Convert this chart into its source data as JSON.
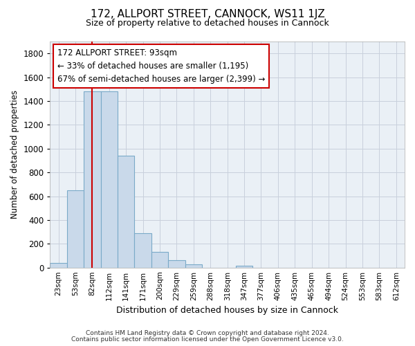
{
  "title1": "172, ALLPORT STREET, CANNOCK, WS11 1JZ",
  "title2": "Size of property relative to detached houses in Cannock",
  "xlabel": "Distribution of detached houses by size in Cannock",
  "ylabel": "Number of detached properties",
  "categories": [
    "23sqm",
    "53sqm",
    "82sqm",
    "112sqm",
    "141sqm",
    "171sqm",
    "200sqm",
    "229sqm",
    "259sqm",
    "288sqm",
    "318sqm",
    "347sqm",
    "377sqm",
    "406sqm",
    "435sqm",
    "465sqm",
    "494sqm",
    "524sqm",
    "553sqm",
    "583sqm",
    "612sqm"
  ],
  "values": [
    40,
    650,
    1480,
    1480,
    940,
    290,
    130,
    65,
    25,
    0,
    0,
    15,
    0,
    0,
    0,
    0,
    0,
    0,
    0,
    0,
    0
  ],
  "bar_color": "#c9d9ea",
  "bar_edge_color": "#7aaac8",
  "red_line_x": 1.97,
  "annotation_text": "172 ALLPORT STREET: 93sqm\n← 33% of detached houses are smaller (1,195)\n67% of semi-detached houses are larger (2,399) →",
  "annotation_box_color": "#ffffff",
  "annotation_box_edge": "#cc0000",
  "red_line_color": "#cc0000",
  "ylim": [
    0,
    1900
  ],
  "yticks": [
    0,
    200,
    400,
    600,
    800,
    1000,
    1200,
    1400,
    1600,
    1800
  ],
  "grid_color": "#c8d0dc",
  "bg_color": "#eaf0f6",
  "footer1": "Contains HM Land Registry data © Crown copyright and database right 2024.",
  "footer2": "Contains public sector information licensed under the Open Government Licence v3.0."
}
